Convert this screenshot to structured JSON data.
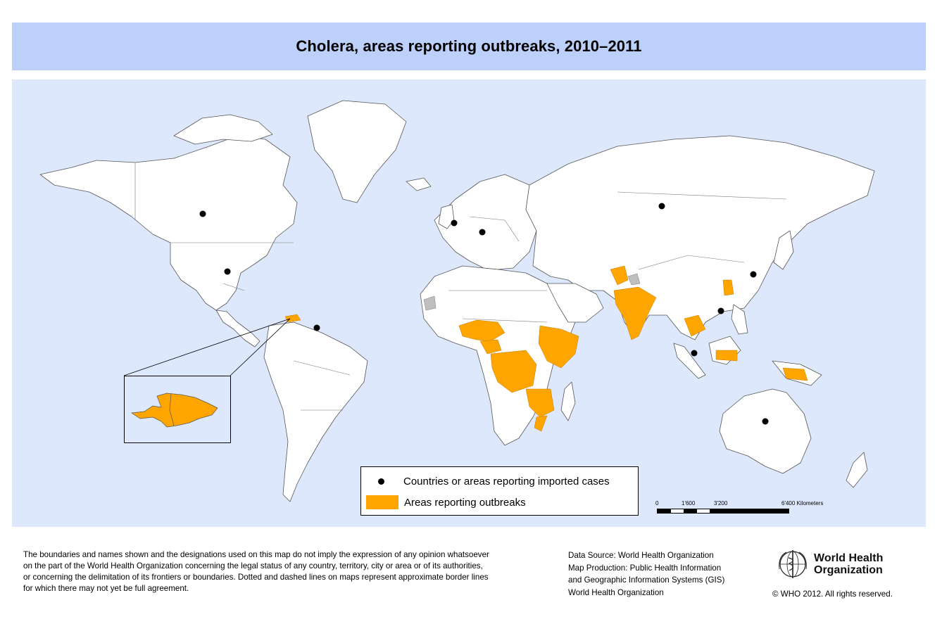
{
  "title": "Cholera, areas reporting outbreaks, 2010–2011",
  "legend": {
    "imported_label": "Countries or areas reporting imported cases",
    "outbreak_label": "Areas reporting outbreaks"
  },
  "scale": {
    "ticks": [
      "0",
      "1'600",
      "3'200",
      "6'400 Kilometers"
    ]
  },
  "disclaimer": [
    "The boundaries and names shown and the designations used on this map do not imply the expression of any opinion whatsoever",
    "on the part of the World Health Organization concerning the legal status of any country, territory, city or area or of its authorities,",
    "or concerning the delimitation of its frontiers or boundaries. Dotted and dashed lines on maps represent approximate border lines",
    "for which there may not yet be full agreement."
  ],
  "source": [
    "Data Source: World Health Organization",
    "Map Production: Public Health Information",
    "and Geographic Information Systems (GIS)",
    "World Health Organization"
  ],
  "organization": {
    "line1": "World Health",
    "line2": "Organization"
  },
  "copyright": "© WHO 2012. All rights reserved.",
  "colors": {
    "ocean": "#dde8fc",
    "land": "#ffffff",
    "border": "#555555",
    "outbreak": "#ffa500",
    "no_data": "#bfbfbf",
    "imported_marker": "#000000",
    "title_band": "#bcd0fa"
  }
}
